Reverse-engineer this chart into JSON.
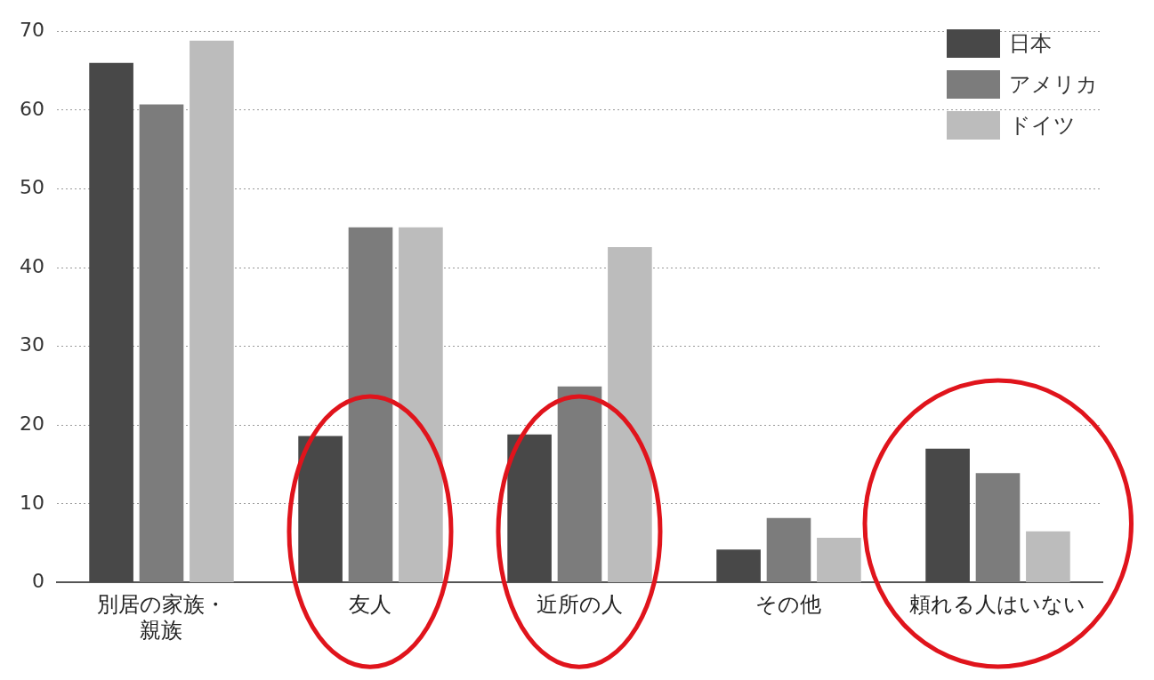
{
  "chart_data": {
    "type": "bar",
    "categories": [
      "別居の家族・親族",
      "友人",
      "近所の人",
      "その他",
      "頼れる人はいない"
    ],
    "series": [
      {
        "name": "日本",
        "color": "#484848",
        "values": [
          66.0,
          18.6,
          18.8,
          4.2,
          17.0
        ]
      },
      {
        "name": "アメリカ",
        "color": "#7c7c7c",
        "values": [
          60.7,
          45.1,
          24.9,
          8.2,
          13.9
        ]
      },
      {
        "name": "ドイツ",
        "color": "#bcbcbc",
        "values": [
          68.8,
          45.1,
          42.6,
          5.7,
          6.5
        ]
      }
    ],
    "ylim": [
      0,
      70
    ],
    "yticks": [
      0,
      10,
      20,
      30,
      40,
      50,
      60,
      70
    ],
    "grid": "y",
    "legend": "top right"
  }
}
